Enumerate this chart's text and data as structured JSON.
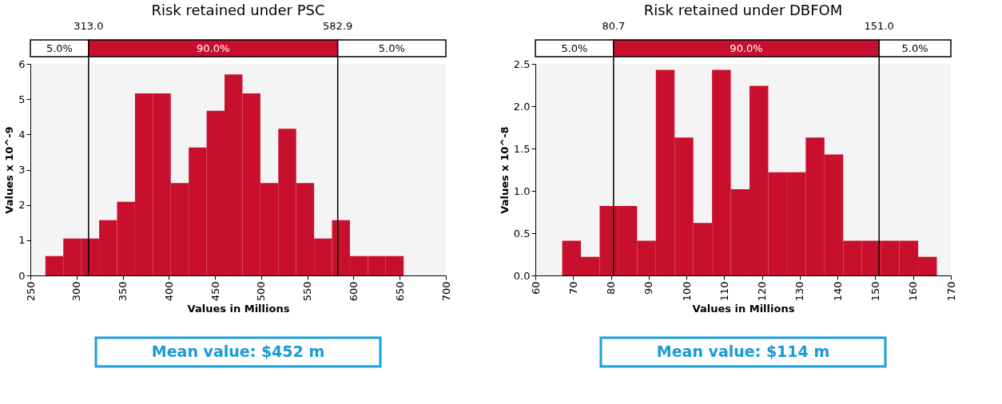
{
  "chart_data": [
    {
      "type": "histogram",
      "title": "Risk retained under PSC",
      "xlabel": "Values in Millions",
      "ylabel": "Values x 10^-9",
      "color": "#c8102e",
      "bins": [
        266.3,
        285.7,
        305.1,
        324.5,
        343.9,
        363.3,
        382.7,
        402.1,
        421.5,
        440.9,
        460.3,
        479.7,
        499.1,
        518.5,
        537.9,
        557.3,
        576.7,
        596.1,
        615.5,
        634.9,
        654.3
      ],
      "values": [
        0.55,
        1.05,
        1.05,
        1.57,
        2.09,
        5.16,
        5.16,
        2.62,
        3.63,
        4.67,
        5.7,
        5.16,
        2.62,
        4.16,
        2.62,
        1.05,
        1.57,
        0.55,
        0.55,
        0.55
      ],
      "xlim": [
        250,
        700
      ],
      "xticks": [
        250,
        300,
        350,
        400,
        450,
        500,
        550,
        600,
        650,
        700
      ],
      "ylim": [
        0,
        6
      ],
      "yticks": [
        0,
        1,
        2,
        3,
        4,
        5,
        6
      ],
      "ref_lines": [
        {
          "axis": "x",
          "value": 313.0,
          "label": "313.0",
          "color": "#000000"
        },
        {
          "axis": "x",
          "value": 582.9,
          "label": "582.9",
          "color": "#000000"
        }
      ],
      "annotations": [
        "5.0%",
        "90.0%",
        "5.0%",
        "Mean value: $452 m"
      ]
    },
    {
      "type": "histogram",
      "title": "Risk retained under DBFOM",
      "xlabel": "Values in Millions",
      "ylabel": "Values x 10^-8",
      "color": "#c8102e",
      "bins": [
        67.1,
        72.06,
        77.02,
        81.98,
        86.94,
        91.9,
        96.86,
        101.82,
        106.78,
        111.74,
        116.7,
        121.66,
        126.62,
        131.58,
        136.54,
        141.5,
        146.46,
        151.42,
        156.38,
        161.34,
        166.3
      ],
      "values": [
        0.41,
        0.22,
        0.82,
        0.82,
        0.41,
        2.43,
        1.63,
        0.62,
        2.43,
        1.02,
        2.24,
        1.22,
        1.22,
        1.63,
        1.43,
        0.41,
        0.41,
        0.41,
        0.41,
        0.22
      ],
      "xlim": [
        60,
        170
      ],
      "xticks": [
        60,
        70,
        80,
        90,
        100,
        110,
        120,
        130,
        140,
        150,
        160,
        170
      ],
      "ylim": [
        0,
        2.5
      ],
      "yticks": [
        {
          "value": 0,
          "label": "0.0"
        },
        {
          "value": 0.5,
          "label": "0.5"
        },
        {
          "value": 1,
          "label": "1.0"
        },
        {
          "value": 1.5,
          "label": "1.5"
        },
        {
          "value": 2,
          "label": "2.0"
        },
        {
          "value": 2.5,
          "label": "2.5"
        }
      ],
      "ref_lines": [
        {
          "axis": "x",
          "value": 80.7,
          "label": "80.7",
          "color": "#000000"
        },
        {
          "axis": "x",
          "value": 151.0,
          "label": "151.0",
          "color": "#000000"
        }
      ],
      "annotations": [
        "5.0%",
        "90.0%",
        "5.0%",
        "Mean value: $114 m"
      ]
    }
  ]
}
